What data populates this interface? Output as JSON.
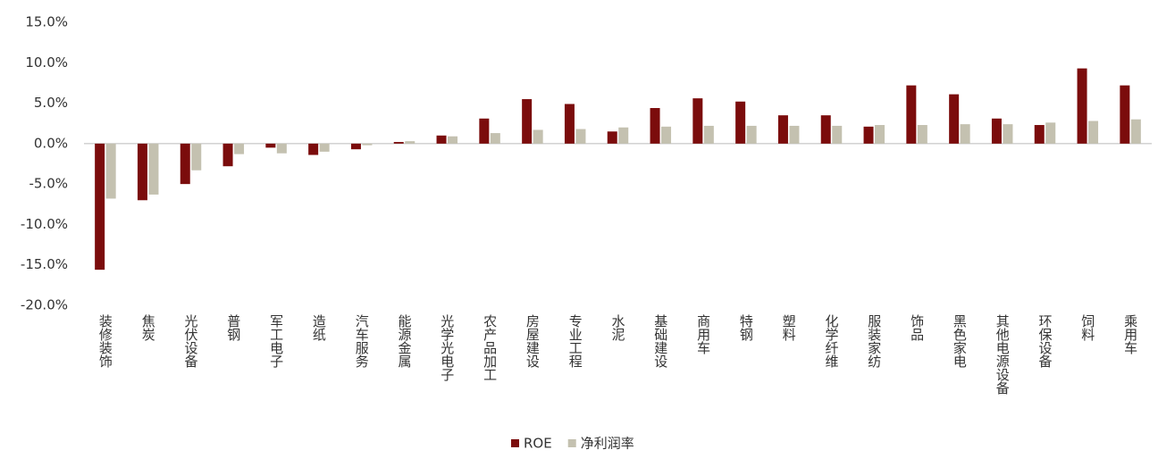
{
  "chart_data": {
    "type": "bar",
    "categories": [
      "装修装饰",
      "焦炭",
      "光伏设备",
      "普钢",
      "军工电子",
      "造纸",
      "汽车服务",
      "能源金属",
      "光学光电子",
      "农产品加工",
      "房屋建设",
      "专业工程",
      "水泥",
      "基础建设",
      "商用车",
      "特钢",
      "塑料",
      "化学纤维",
      "服装家纺",
      "饰品",
      "黑色家电",
      "其他电源设备",
      "环保设备",
      "饲料",
      "乘用车"
    ],
    "series": [
      {
        "name": "ROE",
        "color": "#7b0c0c",
        "values": [
          -15.6,
          -7.0,
          -5.0,
          -2.8,
          -0.5,
          -1.4,
          -0.7,
          0.2,
          1.0,
          3.1,
          5.5,
          4.9,
          1.5,
          4.4,
          5.6,
          5.2,
          3.5,
          3.5,
          2.1,
          7.2,
          6.1,
          3.1,
          2.3,
          9.3,
          7.2
        ]
      },
      {
        "name": "净利润率",
        "color": "#c4c1b0",
        "values": [
          -6.8,
          -6.3,
          -3.3,
          -1.3,
          -1.2,
          -1.0,
          -0.2,
          0.3,
          0.9,
          1.3,
          1.7,
          1.8,
          2.0,
          2.1,
          2.2,
          2.2,
          2.2,
          2.2,
          2.3,
          2.3,
          2.4,
          2.4,
          2.6,
          2.8,
          3.0
        ]
      }
    ],
    "ylim": [
      -20,
      15
    ],
    "yticks": [
      {
        "value": -20,
        "label": "-20.0%"
      },
      {
        "value": -15,
        "label": "-15.0%"
      },
      {
        "value": -10,
        "label": "-10.0%"
      },
      {
        "value": -5,
        "label": "-5.0%"
      },
      {
        "value": 0,
        "label": "0.0%"
      },
      {
        "value": 5,
        "label": "5.0%"
      },
      {
        "value": 10,
        "label": "10.0%"
      },
      {
        "value": 15,
        "label": "15.0%"
      }
    ],
    "grid": false,
    "legend": "bottom"
  }
}
